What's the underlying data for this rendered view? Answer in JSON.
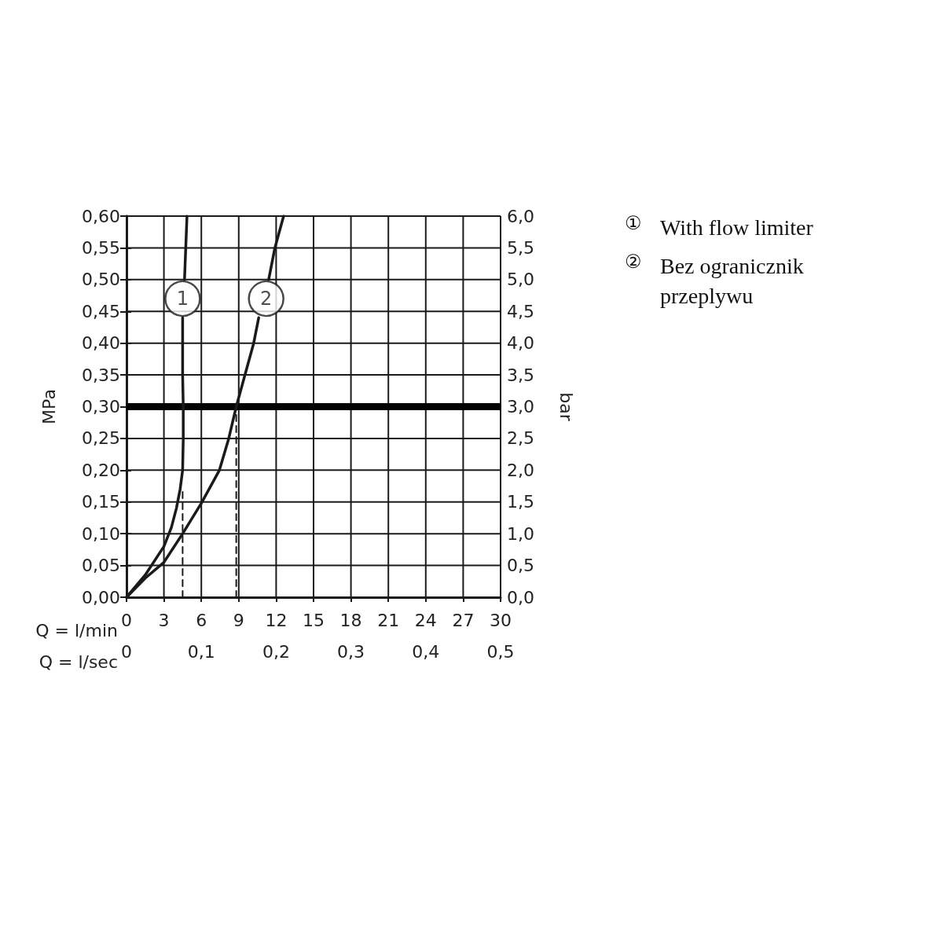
{
  "chart_data": {
    "type": "line",
    "xlabel": "Q = l/min",
    "x2label": "Q = l/sec",
    "ylabel": "MPa",
    "y2label": "bar",
    "xlim": [
      0,
      30
    ],
    "xticks": [
      0,
      3,
      6,
      9,
      12,
      15,
      18,
      21,
      24,
      27,
      30
    ],
    "x2lim": [
      0,
      0.5
    ],
    "x2ticks": [
      0,
      {
        "value": 0.1,
        "label": "0,1"
      },
      {
        "value": 0.2,
        "label": "0,2"
      },
      {
        "value": 0.3,
        "label": "0,3"
      },
      {
        "value": 0.4,
        "label": "0,4"
      },
      {
        "value": 0.5,
        "label": "0,5"
      }
    ],
    "ylim": [
      0,
      0.6
    ],
    "yticks": [
      {
        "value": 0,
        "label": "0,00"
      },
      {
        "value": 0.05,
        "label": "0,05"
      },
      {
        "value": 0.1,
        "label": "0,10"
      },
      {
        "value": 0.15,
        "label": "0,15"
      },
      {
        "value": 0.2,
        "label": "0,20"
      },
      {
        "value": 0.25,
        "label": "0,25"
      },
      {
        "value": 0.3,
        "label": "0,30"
      },
      {
        "value": 0.35,
        "label": "0,35"
      },
      {
        "value": 0.4,
        "label": "0,40"
      },
      {
        "value": 0.45,
        "label": "0,45"
      },
      {
        "value": 0.5,
        "label": "0,50"
      },
      {
        "value": 0.55,
        "label": "0,55"
      },
      {
        "value": 0.6,
        "label": "0,60"
      }
    ],
    "y2lim": [
      0,
      6
    ],
    "y2ticks": [
      {
        "value": 0,
        "label": "0,0"
      },
      {
        "value": 0.5,
        "label": "0,5"
      },
      {
        "value": 1,
        "label": "1,0"
      },
      {
        "value": 1.5,
        "label": "1,5"
      },
      {
        "value": 2,
        "label": "2,0"
      },
      {
        "value": 2.5,
        "label": "2,5"
      },
      {
        "value": 3,
        "label": "3,0"
      },
      {
        "value": 3.5,
        "label": "3,5"
      },
      {
        "value": 4,
        "label": "4,0"
      },
      {
        "value": 4.5,
        "label": "4,5"
      },
      {
        "value": 5,
        "label": "5,0"
      },
      {
        "value": 5.5,
        "label": "5,5"
      },
      {
        "value": 6,
        "label": "6,0"
      }
    ],
    "grid": true,
    "marker": "none",
    "series": [
      {
        "color": "#1a1a1a",
        "x": [
          0,
          1.5,
          3,
          3.6,
          4,
          4.3,
          4.5,
          4.55,
          4.55,
          4.5,
          4.5,
          4.5,
          4.55,
          4.65,
          4.85
        ],
        "values": [
          0,
          0.035,
          0.08,
          0.11,
          0.14,
          0.17,
          0.2,
          0.25,
          0.3,
          0.35,
          0.4,
          0.44,
          null,
          0.5,
          0.6
        ]
      },
      {
        "color": "#1a1a1a",
        "x": [
          0,
          1.5,
          3,
          4.5,
          6,
          7.45,
          8.2,
          8.8,
          9.5,
          10.2,
          10.6,
          10.8,
          11.4,
          11.9,
          12.6
        ],
        "values": [
          0,
          0.03,
          0.055,
          0.1,
          0.148,
          0.2,
          0.25,
          0.3,
          0.35,
          0.4,
          0.44,
          null,
          0.5,
          0.55,
          0.6
        ]
      },
      {
        "color": "#1a1a1a",
        "line_style": "dashed",
        "x": [
          4.5,
          4.5
        ],
        "values": [
          0,
          0.17
        ]
      },
      {
        "color": "#1a1a1a",
        "line_style": "dashed",
        "x": [
          8.8,
          8.8
        ],
        "values": [
          0,
          0.3
        ]
      }
    ],
    "ref_lines": [
      {
        "axis": "y",
        "value": 0.3,
        "color": "#000000"
      }
    ],
    "annotations": [
      {
        "text": "1",
        "x": 4.5,
        "y": 0.47
      },
      {
        "text": "2",
        "x": 11.2,
        "y": 0.47
      },
      "① With flow limiter",
      "② Bez ogranicznik przeplywu"
    ]
  }
}
